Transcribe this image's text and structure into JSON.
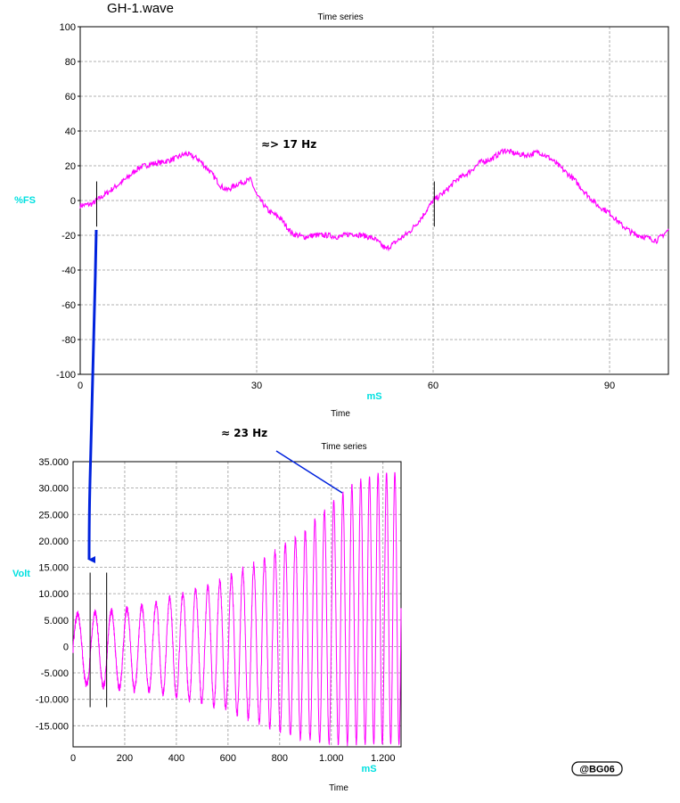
{
  "file_title": "GH-1.wave",
  "watermark": "@BG06",
  "colors": {
    "signal": "#ff00ff",
    "axis_label": "#00e0e0",
    "arrow": "#0022dd",
    "grid": "#999999"
  },
  "chart_data": [
    {
      "type": "line",
      "title": "Time series",
      "xlabel": "Time",
      "xunit": "mS",
      "ylabel": "%FS",
      "xlim": [
        0,
        100
      ],
      "ylim": [
        -100,
        100
      ],
      "xticks": [
        "0",
        "30",
        "60",
        "90"
      ],
      "xtick_values": [
        0,
        30,
        60,
        90
      ],
      "yticks": [
        "100",
        "80",
        "60",
        "40",
        "20",
        "0",
        "-20",
        "-40",
        "-60",
        "-80",
        "-100"
      ],
      "ytick_values": [
        100,
        80,
        60,
        40,
        20,
        0,
        -20,
        -40,
        -60,
        -80,
        -100
      ],
      "grid": true,
      "annotation": "≈> 17 Hz",
      "markers_x": [
        2.8,
        60.2
      ],
      "series": [
        {
          "x": [
            0,
            2,
            4,
            6,
            8,
            10,
            12,
            14,
            16,
            18,
            20,
            22,
            24,
            25,
            27,
            29,
            30,
            32,
            34,
            36,
            38,
            40,
            42,
            44,
            46,
            48,
            50,
            52,
            54,
            56,
            58,
            60,
            62,
            64,
            66,
            68,
            70,
            72,
            74,
            76,
            78,
            80,
            82,
            84,
            86,
            88,
            90,
            92,
            94,
            96,
            98,
            100
          ],
          "y": [
            -3,
            -2,
            3,
            8,
            13,
            19,
            21,
            22,
            24,
            27,
            24,
            17,
            8,
            6,
            10,
            12,
            3,
            -6,
            -10,
            -19,
            -21,
            -20,
            -20,
            -21,
            -19,
            -20,
            -22,
            -28,
            -23,
            -18,
            -10,
            0,
            5,
            12,
            16,
            22,
            24,
            29,
            27,
            26,
            28,
            24,
            18,
            12,
            4,
            -3,
            -7,
            -14,
            -19,
            -21,
            -23,
            -17
          ]
        }
      ]
    },
    {
      "type": "line",
      "title": "Time series",
      "xlabel": "Time",
      "xunit": "mS",
      "ylabel": "Volt",
      "xlim": [
        0,
        1270
      ],
      "ylim": [
        -19000,
        35000
      ],
      "xticks": [
        "0",
        "200",
        "400",
        "600",
        "800",
        "1.000",
        "1.200"
      ],
      "xtick_values": [
        0,
        200,
        400,
        600,
        800,
        1000,
        1200
      ],
      "yticks": [
        "35.000",
        "30.000",
        "25.000",
        "20.000",
        "15.000",
        "10.000",
        "5.000",
        "0",
        "-5.000",
        "-10.000",
        "-15.000"
      ],
      "ytick_values": [
        35000,
        30000,
        25000,
        20000,
        15000,
        10000,
        5000,
        0,
        -5000,
        -10000,
        -15000
      ],
      "grid": true,
      "annotation": "≈ 23 Hz",
      "markers_x": [
        66,
        130
      ],
      "series": [
        {
          "envelope_x": [
            0,
            100,
            200,
            300,
            400,
            500,
            600,
            700,
            800,
            900,
            1000,
            1100,
            1200,
            1270
          ],
          "upper": [
            6000,
            6500,
            7000,
            8000,
            9500,
            11000,
            13000,
            15500,
            18500,
            22000,
            27000,
            31500,
            33000,
            33000
          ],
          "lower": [
            -7000,
            -7500,
            -8000,
            -8500,
            -9500,
            -10500,
            -12000,
            -14000,
            -16000,
            -17500,
            -18500,
            -18500,
            -18500,
            -18500
          ],
          "cycles": 29
        }
      ]
    }
  ]
}
